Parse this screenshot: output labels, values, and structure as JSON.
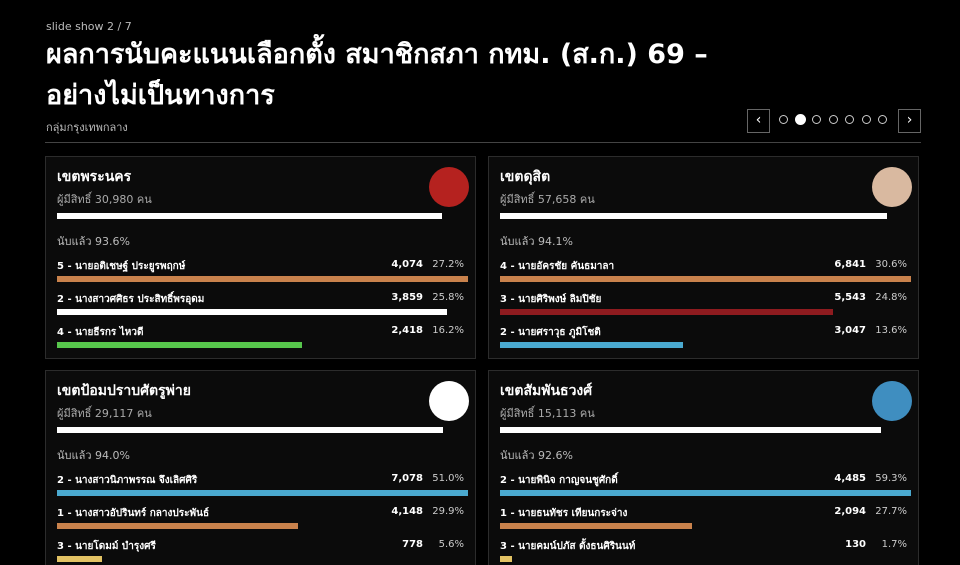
{
  "header": {
    "slide_label": "slide show 2 / 7",
    "title": "ผลการนับคะแนนเลือกตั้ง สมาชิกสภา กทม. (ส.ก.) 69 – อย่างไม่เป็นทางการ",
    "subtitle": "กลุ่มกรุงเทพกลาง",
    "prev": "‹",
    "next": "›",
    "slides": 7,
    "current_slide": 2
  },
  "districts": [
    {
      "name": "เขตพระนคร",
      "eligible": "ผู้มีสิทธิ์ 30,980 คน",
      "counted": 93.6,
      "counted_label": "นับแล้ว 93.6%",
      "candidates": [
        {
          "name": "5 - นายอติเชษฐ์ ประยูรพฤกษ์",
          "votes": "4,074",
          "value": 27.2,
          "value_label": "27.2%",
          "color": "#c9824c"
        },
        {
          "name": "2 - นางสาวศศิธร ประสิทธิ์พรอุดม",
          "votes": "3,859",
          "value": 25.8,
          "value_label": "25.8%",
          "color": "#ffffff"
        },
        {
          "name": "4 - นายธีรกร ไหวดี",
          "votes": "2,418",
          "value": 16.2,
          "value_label": "16.2%",
          "color": "#57c64c"
        }
      ]
    },
    {
      "name": "เขตดุสิต",
      "eligible": "ผู้มีสิทธิ์ 57,658 คน",
      "counted": 94.1,
      "counted_label": "นับแล้ว 94.1%",
      "candidates": [
        {
          "name": "4 - นายอัครชัย คันธมาลา",
          "votes": "6,841",
          "value": 30.6,
          "value_label": "30.6%",
          "color": "#c9824c"
        },
        {
          "name": "3 - นายศิริพงษ์ ลิมปิชัย",
          "votes": "5,543",
          "value": 24.8,
          "value_label": "24.8%",
          "color": "#8e1b1f"
        },
        {
          "name": "2 - นายศราวุธ ภูมิโชติ",
          "votes": "3,047",
          "value": 13.6,
          "value_label": "13.6%",
          "color": "#4aa9cf"
        }
      ]
    },
    {
      "name": "เขตป้อมปราบศัตรูพ่าย",
      "eligible": "ผู้มีสิทธิ์ 29,117 คน",
      "counted": 94.0,
      "counted_label": "นับแล้ว 94.0%",
      "candidates": [
        {
          "name": "2 - นางสาวนิภาพรรณ จึงเลิศศิริ",
          "votes": "7,078",
          "value": 51.0,
          "value_label": "51.0%",
          "color": "#4aa9cf"
        },
        {
          "name": "1 - นางสาวอัปรินทร์ กลางประพันธ์",
          "votes": "4,148",
          "value": 29.9,
          "value_label": "29.9%",
          "color": "#c9824c"
        },
        {
          "name": "3 - นายโดมม์ บำรุงศรี",
          "votes": "778",
          "value": 5.6,
          "value_label": "5.6%",
          "color": "#e2c264"
        }
      ]
    },
    {
      "name": "เขตสัมพันธวงศ์",
      "eligible": "ผู้มีสิทธิ์ 15,113 คน",
      "counted": 92.6,
      "counted_label": "นับแล้ว 92.6%",
      "candidates": [
        {
          "name": "2 - นายพินิจ กาญจนชูศักดิ์",
          "votes": "4,485",
          "value": 59.3,
          "value_label": "59.3%",
          "color": "#4aa9cf"
        },
        {
          "name": "1 - นายธนทัชร เทียนกระจ่าง",
          "votes": "2,094",
          "value": 27.7,
          "value_label": "27.7%",
          "color": "#c9824c"
        },
        {
          "name": "3 - นายคมน์ปภัส ตั้งธนศิรินนท์",
          "votes": "130",
          "value": 1.7,
          "value_label": "1.7%",
          "color": "#e2c264"
        }
      ]
    }
  ]
}
